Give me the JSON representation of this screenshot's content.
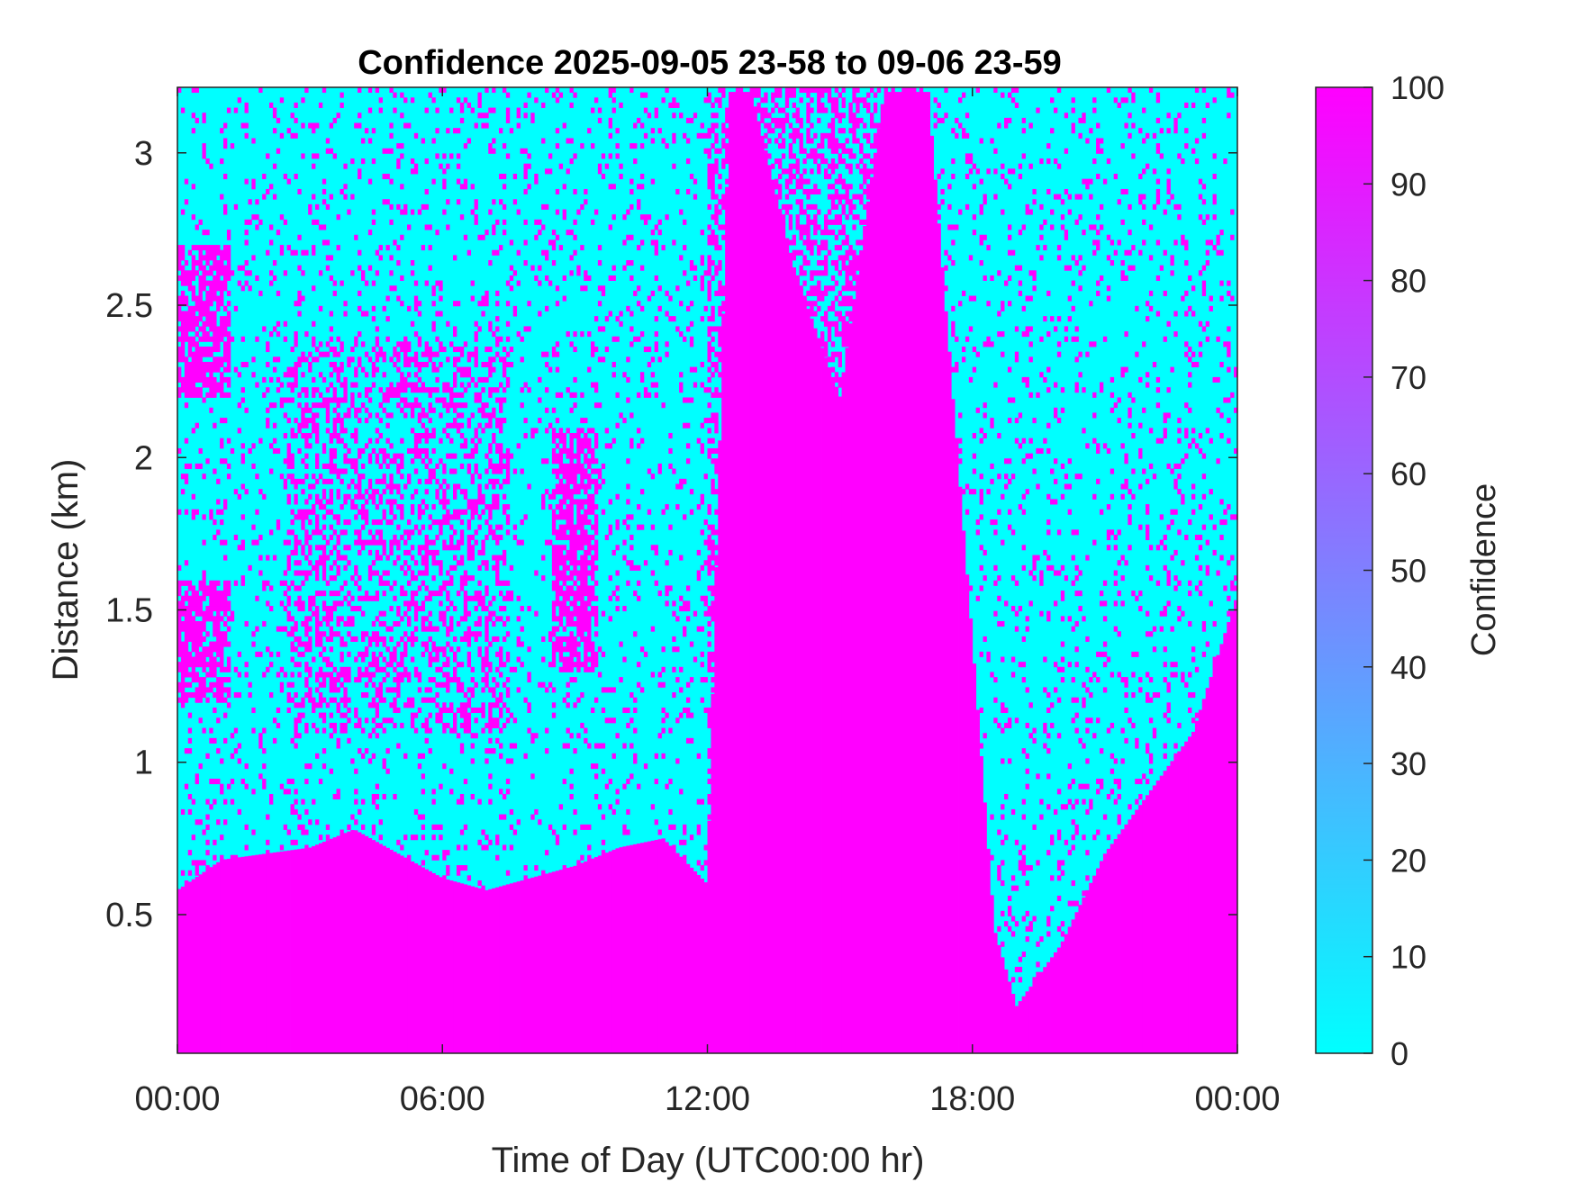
{
  "chart_data": {
    "type": "heatmap",
    "title": "Confidence 2025-09-05 23-58 to 09-06 23-59",
    "xlabel": "Time of Day (UTC00:00 hr)",
    "ylabel": "Distance (km)",
    "x_ticks": [
      "00:00",
      "06:00",
      "12:00",
      "18:00",
      "00:00"
    ],
    "x_tick_hours": [
      0,
      6,
      12,
      18,
      24
    ],
    "xlim_hours": [
      0,
      24
    ],
    "y_ticks": [
      "0.5",
      "1",
      "1.5",
      "2",
      "2.5",
      "3"
    ],
    "y_tick_values": [
      0.5,
      1,
      1.5,
      2,
      2.5,
      3
    ],
    "ylim_km": [
      0.045,
      3.215
    ],
    "colorbar": {
      "label": "Confidence",
      "ticks": [
        "0",
        "10",
        "20",
        "30",
        "40",
        "50",
        "60",
        "70",
        "80",
        "90",
        "100"
      ],
      "tick_values": [
        0,
        10,
        20,
        30,
        40,
        50,
        60,
        70,
        80,
        90,
        100
      ],
      "range": [
        0,
        100
      ],
      "color_low": "#00ffff",
      "color_high": "#ff00ff",
      "colormap": "cool"
    },
    "values_present": [
      0,
      100
    ],
    "high_confidence_boundary_km": {
      "description_hours": [
        0,
        1,
        2,
        3,
        4,
        5,
        6,
        7,
        8,
        9,
        10,
        11,
        12,
        12.5,
        13,
        14,
        15,
        16,
        17,
        18,
        18.5,
        19,
        20,
        21,
        22,
        23,
        24
      ],
      "boundary": [
        0.58,
        0.68,
        0.7,
        0.72,
        0.78,
        0.7,
        0.62,
        0.58,
        0.62,
        0.66,
        0.72,
        0.75,
        0.6,
        3.2,
        3.2,
        2.6,
        2.2,
        3.2,
        3.2,
        1.4,
        0.45,
        0.2,
        0.4,
        0.7,
        0.9,
        1.1,
        1.55
      ]
    }
  }
}
